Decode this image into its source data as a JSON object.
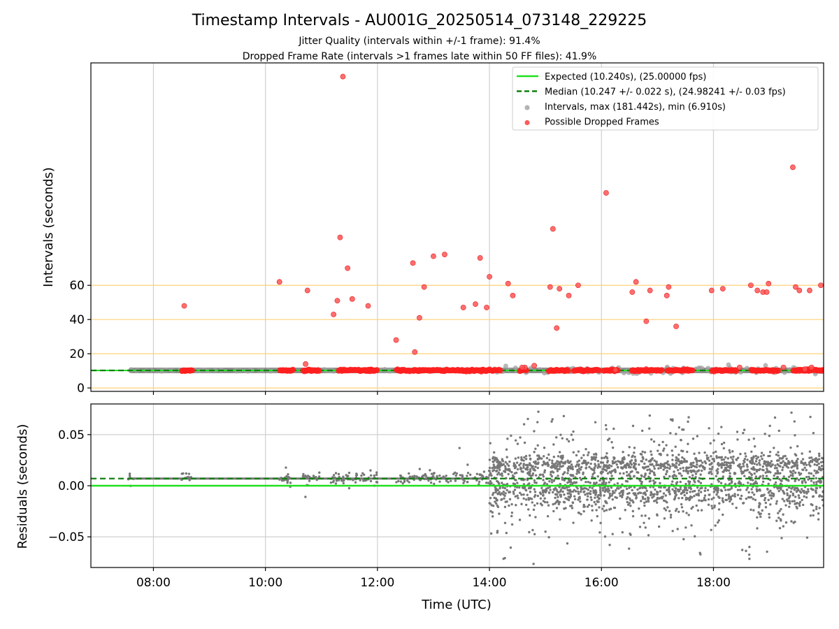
{
  "chart_data": [
    {
      "type": "scatter",
      "title": "Timestamp Intervals - AU001G_20250514_073148_229225",
      "subtitle_lines": [
        "Jitter Quality (intervals within +/-1 frame): 91.4%",
        "Dropped Frame Rate (intervals >1 frames late within 50 FF files): 41.9%"
      ],
      "ylabel": "Intervals (seconds)",
      "xlim": [
        "06:53",
        "19:58"
      ],
      "ylim": [
        -2,
        190
      ],
      "x_ticks": [
        "08:00",
        "10:00",
        "12:00",
        "14:00",
        "16:00",
        "18:00"
      ],
      "y_ticks": [
        0,
        20,
        40,
        60
      ],
      "reference_lines": [
        0,
        20,
        40,
        60
      ],
      "reference_line_color": "#ffd27a",
      "expected_line": 10.24,
      "median_line": 10.247,
      "grid": "vertical",
      "legend_position": "top-right",
      "legend": [
        {
          "label": "Expected (10.240s), (25.00000 fps)",
          "style": "solid-line",
          "color": "#1fe01f"
        },
        {
          "label": "Median (10.247 +/- 0.022 s), (24.98241 +/- 0.03 fps)",
          "style": "dashed-line",
          "color": "#108010"
        },
        {
          "label": "Intervals, max (181.442s), min (6.910s)",
          "style": "marker",
          "color": "#a0a0a0"
        },
        {
          "label": "Possible Dropped Frames",
          "style": "marker",
          "color": "#ff3333"
        }
      ],
      "series": [
        {
          "kind": "intervals",
          "color": "#808080",
          "band_x": [
            "07:33",
            "19:58"
          ],
          "band_y": 10.24
        },
        {
          "kind": "dropped",
          "color": "#ff3333",
          "points": [
            [
              "08:33",
              48
            ],
            [
              "10:15",
              62
            ],
            [
              "10:43",
              14
            ],
            [
              "10:45",
              57
            ],
            [
              "11:13",
              43
            ],
            [
              "11:17",
              51
            ],
            [
              "11:20",
              88
            ],
            [
              "11:23",
              182
            ],
            [
              "11:28",
              70
            ],
            [
              "11:33",
              52
            ],
            [
              "11:50",
              48
            ],
            [
              "12:20",
              28
            ],
            [
              "12:38",
              73
            ],
            [
              "12:40",
              21
            ],
            [
              "12:45",
              41
            ],
            [
              "12:50",
              59
            ],
            [
              "13:00",
              77
            ],
            [
              "13:12",
              78
            ],
            [
              "13:32",
              47
            ],
            [
              "13:45",
              49
            ],
            [
              "13:50",
              76
            ],
            [
              "13:57",
              47
            ],
            [
              "14:00",
              65
            ],
            [
              "14:20",
              61
            ],
            [
              "14:25",
              54
            ],
            [
              "14:38",
              12
            ],
            [
              "14:48",
              13
            ],
            [
              "15:05",
              59
            ],
            [
              "15:08",
              93
            ],
            [
              "15:12",
              35
            ],
            [
              "15:15",
              58
            ],
            [
              "15:25",
              54
            ],
            [
              "15:35",
              60
            ],
            [
              "16:05",
              114
            ],
            [
              "16:33",
              56
            ],
            [
              "16:37",
              62
            ],
            [
              "16:48",
              39
            ],
            [
              "16:52",
              57
            ],
            [
              "17:10",
              54
            ],
            [
              "17:12",
              59
            ],
            [
              "17:20",
              36
            ],
            [
              "17:58",
              57
            ],
            [
              "18:10",
              58
            ],
            [
              "18:40",
              60
            ],
            [
              "18:47",
              57
            ],
            [
              "18:53",
              56
            ],
            [
              "18:57",
              56
            ],
            [
              "18:59",
              61
            ],
            [
              "19:25",
              129
            ],
            [
              "19:28",
              59
            ],
            [
              "19:32",
              57
            ],
            [
              "19:43",
              57
            ],
            [
              "19:55",
              60
            ],
            [
              "19:45",
              12
            ],
            [
              "19:38",
              11
            ],
            [
              "18:28",
              12
            ],
            [
              "19:15",
              12
            ],
            [
              "16:15",
              10.5
            ],
            [
              "14:35",
              12
            ]
          ],
          "dense_clusters": [
            [
              "08:30",
              "08:42"
            ],
            [
              "10:15",
              "10:30"
            ],
            [
              "10:40",
              "10:58"
            ],
            [
              "11:18",
              "11:55"
            ],
            [
              "11:48",
              "12:00"
            ],
            [
              "12:20",
              "12:35"
            ],
            [
              "12:37",
              "13:40"
            ],
            [
              "13:40",
              "13:55"
            ],
            [
              "13:55",
              "14:12"
            ],
            [
              "14:32",
              "14:40"
            ],
            [
              "15:03",
              "15:25"
            ],
            [
              "15:30",
              "15:40"
            ],
            [
              "15:40",
              "15:58"
            ],
            [
              "16:02",
              "16:18"
            ],
            [
              "16:32",
              "17:05"
            ],
            [
              "17:10",
              "17:38"
            ],
            [
              "17:58",
              "18:12"
            ],
            [
              "18:12",
              "18:25"
            ],
            [
              "18:40",
              "19:00"
            ],
            [
              "19:00",
              "19:10"
            ],
            [
              "19:25",
              "19:58"
            ]
          ],
          "band_y": 10.24
        }
      ]
    },
    {
      "type": "scatter",
      "xlabel": "Time (UTC)",
      "ylabel": "Residuals (seconds)",
      "xlim": [
        "06:53",
        "19:58"
      ],
      "ylim": [
        -0.08,
        0.08
      ],
      "x_ticks": [
        "08:00",
        "10:00",
        "12:00",
        "14:00",
        "16:00",
        "18:00"
      ],
      "y_ticks": [
        0.05,
        0.0,
        -0.05
      ],
      "y_tick_labels": [
        "0.05",
        "0.00",
        "−0.05"
      ],
      "expected_line": 0.0,
      "median_line": 0.007,
      "grid": "both",
      "series": [
        {
          "kind": "residuals",
          "color": "#777777",
          "early_phase": {
            "x_range": [
              "07:33",
              "14:00"
            ],
            "center": 0.007,
            "spread": 0.003
          },
          "late_phase": {
            "x_range": [
              "14:00",
              "19:58"
            ],
            "center": 0.005,
            "spread": 0.03
          }
        }
      ]
    }
  ]
}
